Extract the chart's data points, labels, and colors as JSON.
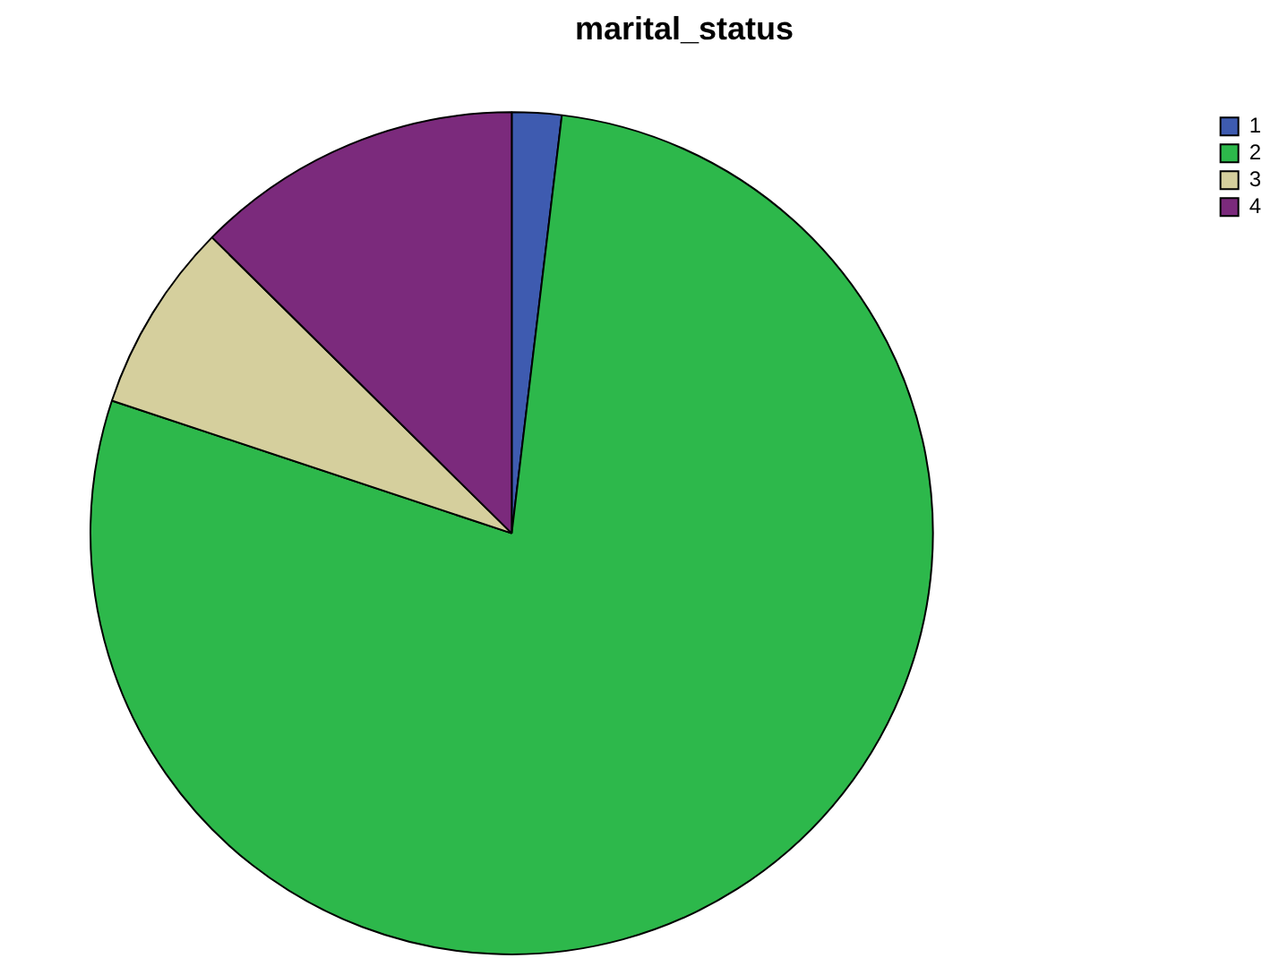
{
  "chart_data": {
    "type": "pie",
    "title": "marital_status",
    "categories": [
      "1",
      "2",
      "3",
      "4"
    ],
    "values": [
      1.9,
      78.2,
      7.3,
      12.6
    ],
    "colors": [
      "#3e5bb0",
      "#2db84b",
      "#d5cf9d",
      "#7b2a7c"
    ],
    "legend": "top right"
  }
}
